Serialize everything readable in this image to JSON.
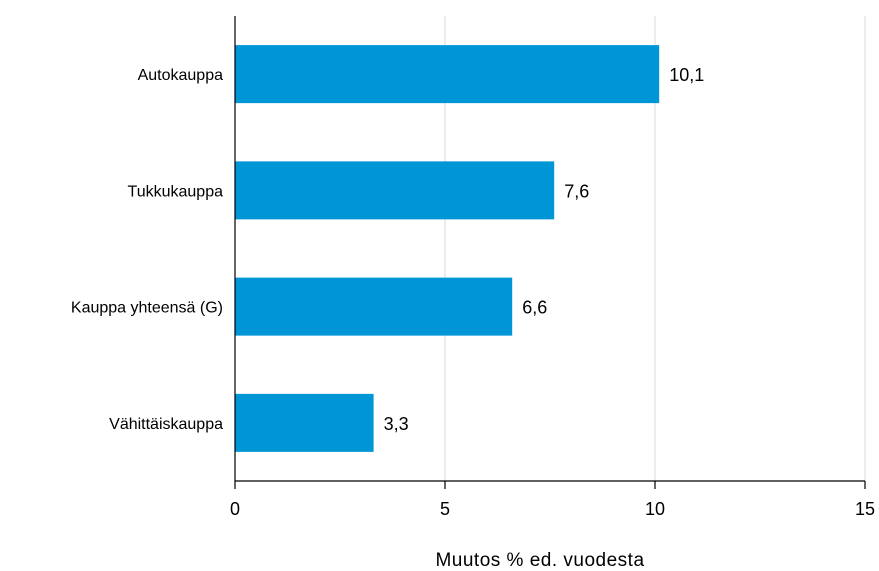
{
  "chart_data": {
    "type": "bar",
    "orientation": "horizontal",
    "categories": [
      "Autokauppa",
      "Tukkukauppa",
      "Kauppa yhteensä (G)",
      "Vähittäiskauppa"
    ],
    "values": [
      10.1,
      7.6,
      6.6,
      3.3
    ],
    "value_labels": [
      "10,1",
      "7,6",
      "6,6",
      "3,3"
    ],
    "title": "",
    "xlabel": "Muutos % ed. vuodesta",
    "ylabel": "",
    "xlim": [
      0,
      15
    ],
    "x_ticks": [
      0,
      5,
      10,
      15
    ],
    "x_tick_labels": [
      "0",
      "5",
      "10",
      "15"
    ],
    "grid": "vertical",
    "legend": "none",
    "colors": {
      "bar": "#0096d6",
      "grid": "#d9d9d9",
      "axis": "#000000"
    }
  }
}
